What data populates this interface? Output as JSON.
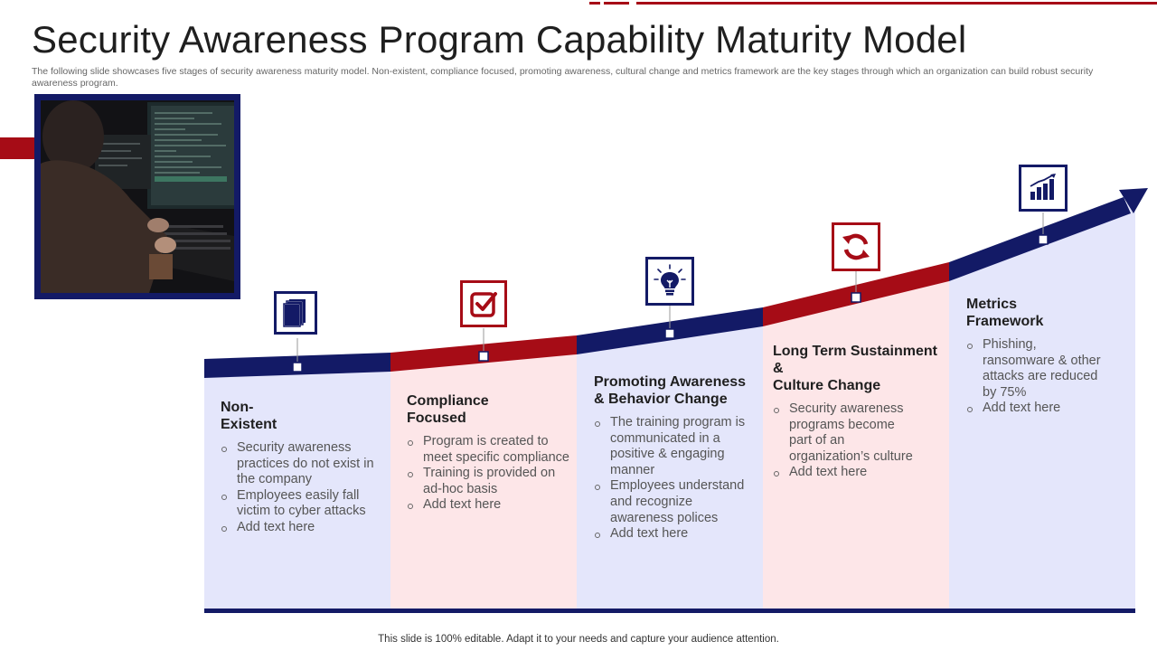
{
  "title": "Security Awareness Program Capability Maturity Model",
  "subtitle": "The following slide showcases five stages of security awareness maturity model. Non-existent, compliance focused, promoting awareness, cultural change and metrics framework are the key stages through which an organization can build robust security awareness program.",
  "colors": {
    "navy": "#131a66",
    "red": "#a60c16",
    "blue_panel": "#e4e6fb",
    "pink_panel": "#fde6e8"
  },
  "stages": [
    {
      "heading": "Non-\nExistent",
      "icon": "document-stack-icon",
      "bullets": [
        "Security awareness practices do not exist in the company",
        "Employees easily fall victim to cyber attacks",
        "Add text here"
      ]
    },
    {
      "heading": "Compliance\nFocused",
      "icon": "checkbox-icon",
      "bullets": [
        "Program is created to meet specific compliance",
        "Training is provided on ad-hoc basis",
        "Add text here"
      ]
    },
    {
      "heading": "Promoting Awareness\n& Behavior Change",
      "icon": "lightbulb-icon",
      "bullets": [
        "The training program is communicated in a positive & engaging manner",
        "Employees understand and recognize awareness polices",
        "Add text here"
      ]
    },
    {
      "heading": "Long Term Sustainment &\nCulture Change",
      "icon": "refresh-icon",
      "bullets": [
        "Security awareness programs become part of an organization’s culture",
        "Add text here"
      ]
    },
    {
      "heading": "Metrics\nFramework",
      "icon": "bar-chart-icon",
      "bullets": [
        "Phishing, ransomware & other attacks are reduced by 75%",
        "Add text here"
      ]
    }
  ],
  "footer": "This slide is 100% editable. Adapt it to your  needs and capture your audience attention."
}
